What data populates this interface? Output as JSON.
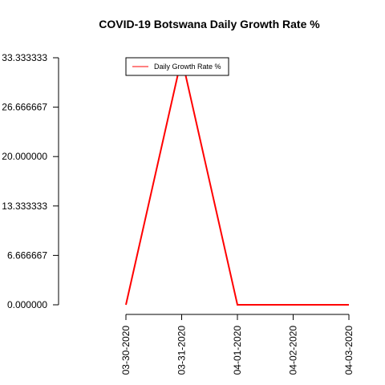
{
  "chart_data": {
    "type": "line",
    "title": "COVID-19 Botswana Daily Growth Rate %",
    "xlabel": "",
    "ylabel": "",
    "categories": [
      "03-30-2020",
      "03-31-2020",
      "04-01-2020",
      "04-02-2020",
      "04-03-2020"
    ],
    "series": [
      {
        "name": "Daily Growth Rate %",
        "values": [
          0.0,
          33.333333,
          0.0,
          0.0,
          0.0
        ],
        "color": "#ff0000"
      }
    ],
    "ylim": [
      0,
      33.333333
    ],
    "yticks": [
      "0.000000",
      "6.666667",
      "13.333333",
      "20.000000",
      "26.666667",
      "33.333333"
    ],
    "grid": false,
    "legend": "top-left"
  }
}
